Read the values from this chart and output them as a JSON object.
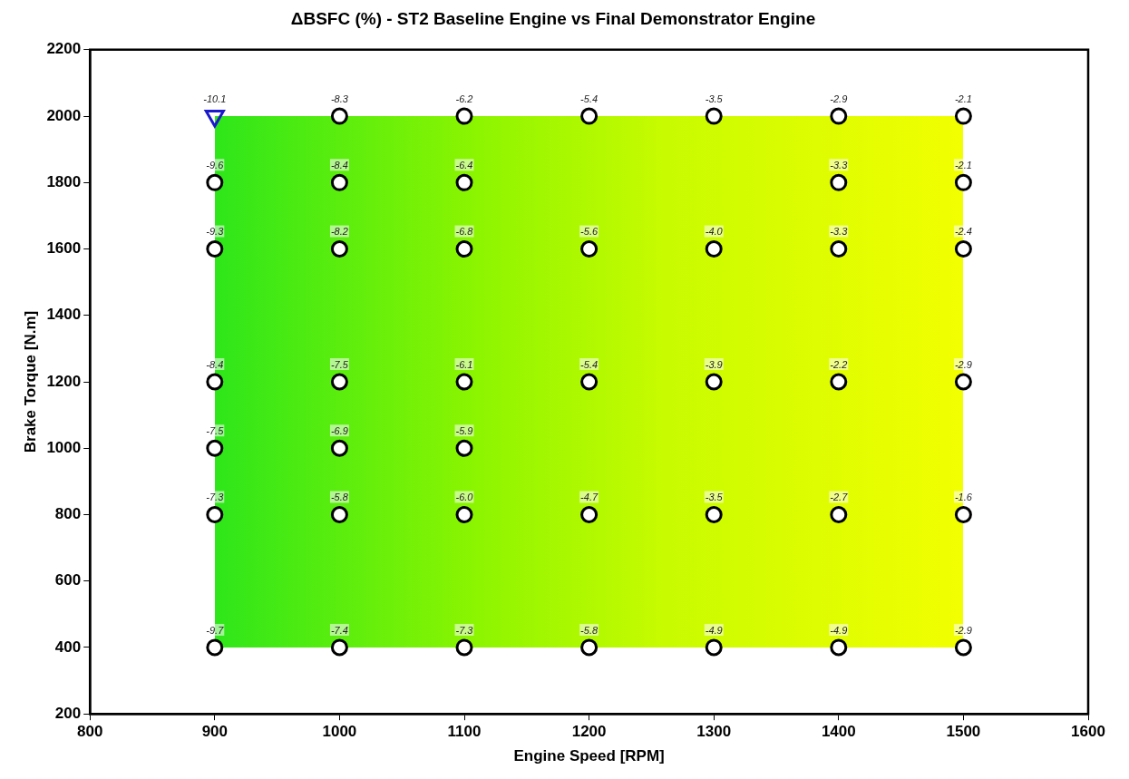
{
  "chart_data": {
    "type": "scatter",
    "title": "ΔBSFC (%) - ST2 Baseline Engine vs Final Demonstrator Engine",
    "xlabel": "Engine Speed [RPM]",
    "ylabel": "Brake Torque [N.m]",
    "xlim": [
      800,
      1600
    ],
    "xticks": [
      800,
      900,
      1000,
      1100,
      1200,
      1300,
      1400,
      1500,
      1600
    ],
    "ylim": [
      200,
      2200
    ],
    "yticks": [
      200,
      400,
      600,
      800,
      1000,
      1200,
      1400,
      1600,
      1800,
      2000,
      2200
    ],
    "grid": false,
    "legend": false,
    "series": [
      {
        "marker": "triangle",
        "color": "#1a1acc",
        "x": [
          900
        ],
        "values": [
          2000
        ]
      },
      {
        "marker": "circle",
        "color": "#000000",
        "x": [
          1000,
          1100,
          1200,
          1300,
          1400,
          1500,
          900,
          1000,
          1100,
          1400,
          1500,
          900,
          1000,
          1100,
          1200,
          1300,
          1400,
          1500,
          900,
          1000,
          1100,
          1200,
          1300,
          1400,
          1500,
          900,
          1000,
          1100,
          900,
          1000,
          1100,
          1200,
          1300,
          1400,
          1500,
          900,
          1000,
          1100,
          1200,
          1300,
          1400,
          1500
        ],
        "values": [
          2000,
          2000,
          2000,
          2000,
          2000,
          2000,
          1800,
          1800,
          1800,
          1800,
          1800,
          1600,
          1600,
          1600,
          1600,
          1600,
          1600,
          1600,
          1200,
          1200,
          1200,
          1200,
          1200,
          1200,
          1200,
          1000,
          1000,
          1000,
          800,
          800,
          800,
          800,
          800,
          800,
          800,
          400,
          400,
          400,
          400,
          400,
          400,
          400
        ]
      }
    ],
    "annotations": [
      {
        "text": "-10.1",
        "x": 900,
        "y": 2000
      },
      {
        "text": "-8.3",
        "x": 1000,
        "y": 2000
      },
      {
        "text": "-6.2",
        "x": 1100,
        "y": 2000
      },
      {
        "text": "-5.4",
        "x": 1200,
        "y": 2000
      },
      {
        "text": "-3.5",
        "x": 1300,
        "y": 2000
      },
      {
        "text": "-2.9",
        "x": 1400,
        "y": 2000
      },
      {
        "text": "-2.1",
        "x": 1500,
        "y": 2000
      },
      {
        "text": "-9.6",
        "x": 900,
        "y": 1800
      },
      {
        "text": "-8.4",
        "x": 1000,
        "y": 1800
      },
      {
        "text": "-6.4",
        "x": 1100,
        "y": 1800
      },
      {
        "text": "-3.3",
        "x": 1400,
        "y": 1800
      },
      {
        "text": "-2.1",
        "x": 1500,
        "y": 1800
      },
      {
        "text": "-9.3",
        "x": 900,
        "y": 1600
      },
      {
        "text": "-8.2",
        "x": 1000,
        "y": 1600
      },
      {
        "text": "-6.8",
        "x": 1100,
        "y": 1600
      },
      {
        "text": "-5.6",
        "x": 1200,
        "y": 1600
      },
      {
        "text": "-4.0",
        "x": 1300,
        "y": 1600
      },
      {
        "text": "-3.3",
        "x": 1400,
        "y": 1600
      },
      {
        "text": "-2.4",
        "x": 1500,
        "y": 1600
      },
      {
        "text": "-8.4",
        "x": 900,
        "y": 1200
      },
      {
        "text": "-7.5",
        "x": 1000,
        "y": 1200
      },
      {
        "text": "-6.1",
        "x": 1100,
        "y": 1200
      },
      {
        "text": "-5.4",
        "x": 1200,
        "y": 1200
      },
      {
        "text": "-3.9",
        "x": 1300,
        "y": 1200
      },
      {
        "text": "-2.2",
        "x": 1400,
        "y": 1200
      },
      {
        "text": "-2.9",
        "x": 1500,
        "y": 1200
      },
      {
        "text": "-7.5",
        "x": 900,
        "y": 1000
      },
      {
        "text": "-6.9",
        "x": 1000,
        "y": 1000
      },
      {
        "text": "-5.9",
        "x": 1100,
        "y": 1000
      },
      {
        "text": "-7.3",
        "x": 900,
        "y": 800
      },
      {
        "text": "-5.8",
        "x": 1000,
        "y": 800
      },
      {
        "text": "-6.0",
        "x": 1100,
        "y": 800
      },
      {
        "text": "-4.7",
        "x": 1200,
        "y": 800
      },
      {
        "text": "-3.5",
        "x": 1300,
        "y": 800
      },
      {
        "text": "-2.7",
        "x": 1400,
        "y": 800
      },
      {
        "text": "-1.6",
        "x": 1500,
        "y": 800
      },
      {
        "text": "-9.7",
        "x": 900,
        "y": 400
      },
      {
        "text": "-7.4",
        "x": 1000,
        "y": 400
      },
      {
        "text": "-7.3",
        "x": 1100,
        "y": 400
      },
      {
        "text": "-5.8",
        "x": 1200,
        "y": 400
      },
      {
        "text": "-4.9",
        "x": 1300,
        "y": 400
      },
      {
        "text": "-4.9",
        "x": 1400,
        "y": 400
      },
      {
        "text": "-2.9",
        "x": 1500,
        "y": 400
      }
    ]
  }
}
